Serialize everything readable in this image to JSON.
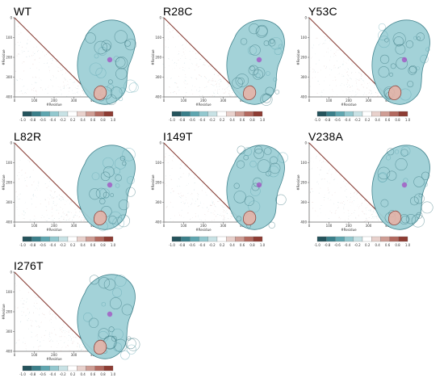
{
  "figure": {
    "panels": [
      {
        "title": "WT"
      },
      {
        "title": "R28C"
      },
      {
        "title": "Y53C"
      },
      {
        "title": "L82R"
      },
      {
        "title": "I149T"
      },
      {
        "title": "V238A"
      },
      {
        "title": "I276T"
      }
    ],
    "axis": {
      "xlabel": "#Residue",
      "ylabel": "#Residue",
      "ticks": [
        "0",
        "100",
        "200",
        "300",
        "400"
      ]
    },
    "colorbar": {
      "ticks": [
        "-1.0",
        "-0.8",
        "-0.6",
        "-0.4",
        "-0.2",
        "0.2",
        "0.4",
        "0.6",
        "0.8",
        "1.0"
      ],
      "colors": [
        "#24535c",
        "#3a7f8a",
        "#5fa6b0",
        "#93c8cf",
        "#c8e2e5",
        "#ffffff",
        "#e8d1cc",
        "#cf9d94",
        "#b3695f",
        "#8e3c33"
      ]
    }
  }
}
